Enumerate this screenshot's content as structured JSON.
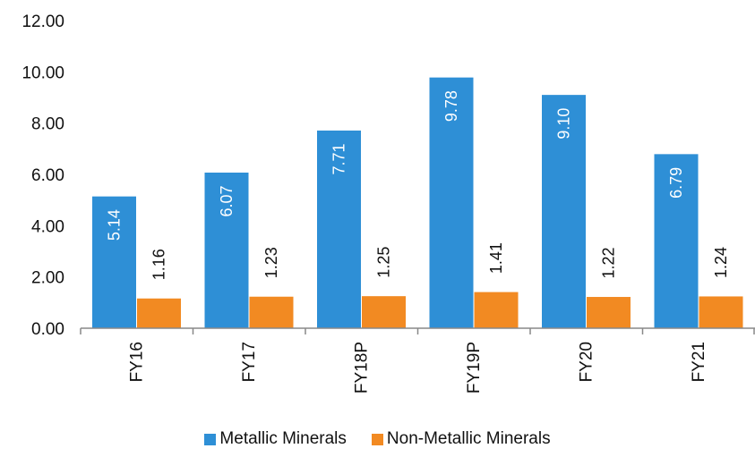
{
  "chart_data": {
    "type": "bar",
    "categories": [
      "FY16",
      "FY17",
      "FY18P",
      "FY19P",
      "FY20",
      "FY21"
    ],
    "series": [
      {
        "name": "Metallic Minerals",
        "color": "#2E8FD6",
        "values": [
          5.14,
          6.07,
          7.71,
          9.78,
          9.1,
          6.79
        ]
      },
      {
        "name": "Non-Metallic Minerals",
        "color": "#F28A22",
        "values": [
          1.16,
          1.23,
          1.25,
          1.41,
          1.22,
          1.24
        ]
      }
    ],
    "data_label_text": [
      [
        "5.14",
        "6.07",
        "7.71",
        "9.78",
        "9.10",
        "6.79"
      ],
      [
        "1.16",
        "1.23",
        "1.25",
        "1.41",
        "1.22",
        "1.24"
      ]
    ],
    "y_ticks": [
      "0.00",
      "2.00",
      "4.00",
      "6.00",
      "8.00",
      "10.00",
      "12.00"
    ],
    "ylim": [
      0,
      12
    ],
    "grid": false,
    "legend_position": "bottom"
  }
}
